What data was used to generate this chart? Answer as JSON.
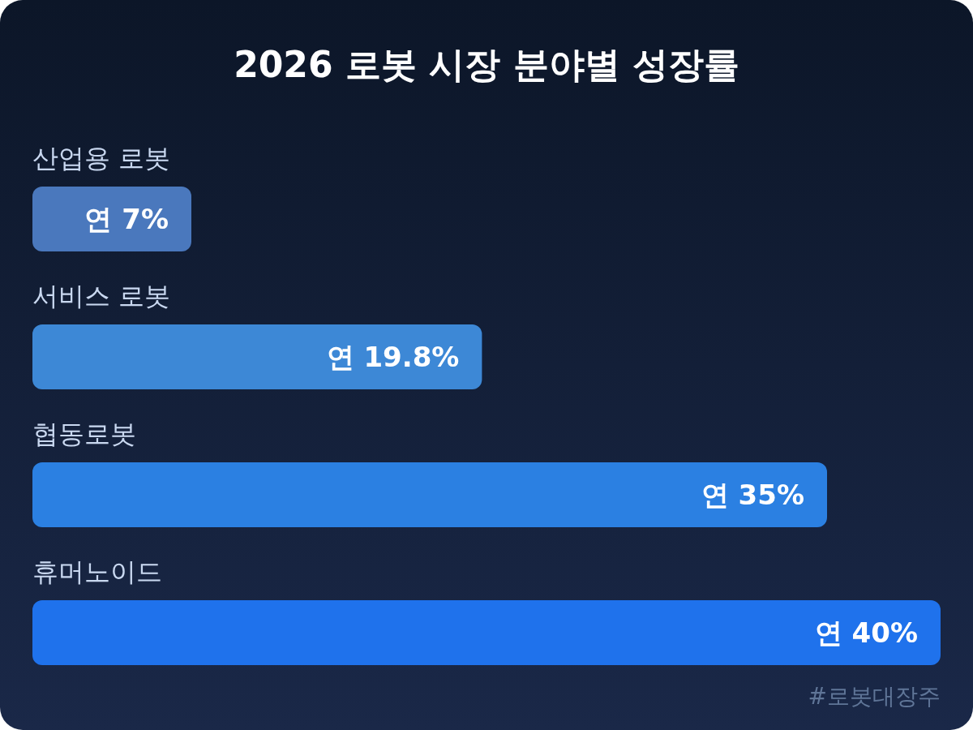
{
  "chart_data": {
    "type": "bar",
    "orientation": "horizontal",
    "title": "2026 로봇 시장 분야별 성장률",
    "categories": [
      "산업용 로봇",
      "서비스 로봇",
      "협동로봇",
      "휴머노이드"
    ],
    "values": [
      7,
      19.8,
      35,
      40
    ],
    "colors": [
      "#4a78bd",
      "#3d88d6",
      "#2b80e2",
      "#1f72ec"
    ],
    "value_labels": [
      "연 7%",
      "연 19.8%",
      "연 35%",
      "연 40%"
    ],
    "annotations": [
      "#로봇대장주"
    ]
  }
}
